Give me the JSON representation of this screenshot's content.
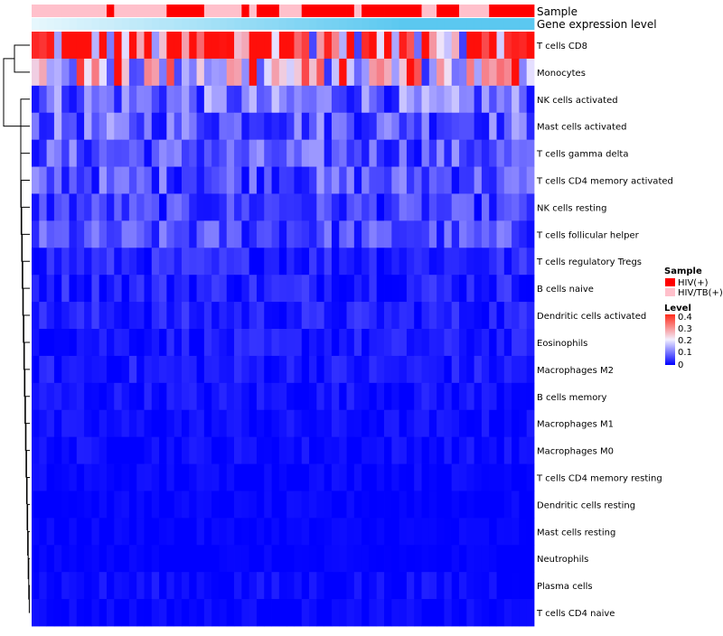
{
  "chart_data": {
    "type": "heatmap",
    "title": "",
    "annotation_tracks": [
      {
        "name": "Sample",
        "label": "Sample"
      },
      {
        "name": "Gene expression level",
        "label": "Gene expression level"
      }
    ],
    "sample_groups": [
      1,
      1,
      1,
      1,
      1,
      1,
      1,
      1,
      1,
      1,
      0,
      1,
      1,
      1,
      1,
      1,
      1,
      1,
      0,
      0,
      0,
      0,
      0,
      1,
      1,
      1,
      1,
      1,
      0,
      1,
      0,
      0,
      0,
      1,
      1,
      1,
      0,
      0,
      0,
      0,
      0,
      0,
      0,
      1,
      0,
      0,
      0,
      0,
      0,
      0,
      0,
      0,
      1,
      1,
      0,
      0,
      0,
      1,
      1,
      1,
      1,
      0,
      0,
      0,
      0,
      0,
      0
    ],
    "expression_level": [
      0.15,
      0.17,
      0.19,
      0.2,
      0.22,
      0.24,
      0.26,
      0.27,
      0.29,
      0.31,
      0.32,
      0.34,
      0.36,
      0.38,
      0.39,
      0.41,
      0.43,
      0.45,
      0.46,
      0.48,
      0.5,
      0.51,
      0.53,
      0.55,
      0.57,
      0.58,
      0.6,
      0.62,
      0.64,
      0.65,
      0.67,
      0.69,
      0.7,
      0.72,
      0.74,
      0.76,
      0.77,
      0.79,
      0.81,
      0.83,
      0.84,
      0.86,
      0.88,
      0.89,
      0.91,
      0.93,
      0.95,
      0.96,
      0.98,
      1.0,
      1.0,
      1.0,
      1.0,
      1.0,
      1.0,
      1.0,
      1.0,
      1.0,
      1.0,
      1.0,
      1.0,
      1.0,
      1.0,
      1.0,
      1.0,
      1.0,
      1.0
    ],
    "rows": [
      "T cells CD8",
      "Monocytes",
      "NK cells activated",
      "Mast cells activated",
      "T cells gamma delta",
      "T cells CD4 memory activated",
      "NK cells resting",
      "T cells follicular helper",
      "T cells regulatory  Tregs",
      "B cells naive",
      "Dendritic cells activated",
      "Eosinophils",
      "Macrophages M2",
      "B cells memory",
      "Macrophages M1",
      "Macrophages M0",
      "T cells CD4 memory resting",
      "Dendritic cells resting",
      "Mast cells resting",
      "Neutrophils",
      "Plasma cells",
      "T cells CD4 naive"
    ],
    "row_base_level": [
      0.3,
      0.2,
      0.09,
      0.08,
      0.07,
      0.07,
      0.05,
      0.06,
      0.03,
      0.03,
      0.025,
      0.02,
      0.02,
      0.015,
      0.01,
      0.01,
      0.005,
      0.002,
      0.002,
      0.0,
      0.01,
      0.005
    ],
    "legend": {
      "sample": {
        "title": "Sample",
        "entries": [
          {
            "label": "HIV(+)",
            "color": "#ff0000"
          },
          {
            "label": "HIV/TB(+)",
            "color": "#ffc0cb"
          }
        ]
      },
      "level": {
        "title": "Level",
        "ticks": [
          "0.4",
          "0.3",
          "0.2",
          "0.1",
          "0"
        ],
        "range": [
          0,
          0.4
        ]
      }
    },
    "colors": {
      "low": "#0000ff",
      "mid": "#ffffff",
      "high": "#ff0000",
      "expr_low": "#ffffff",
      "expr_high": "#5bc8f0"
    }
  }
}
